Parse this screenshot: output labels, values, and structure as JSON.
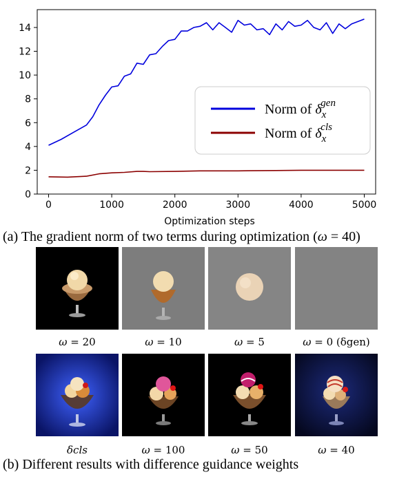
{
  "chart_data": {
    "type": "line",
    "xlabel": "Optimization steps",
    "ylabel": "",
    "xlim": [
      -180,
      5180
    ],
    "ylim": [
      0,
      15.5
    ],
    "xticks": [
      "0",
      "1000",
      "2000",
      "3000",
      "4000",
      "5000"
    ],
    "yticks": [
      "0",
      "2",
      "4",
      "6",
      "8",
      "10",
      "12",
      "14"
    ],
    "grid": false,
    "legend_position": "center-right",
    "series": [
      {
        "name": "Norm of δ_x^gen",
        "color": "#0000dd",
        "x": [
          0,
          200,
          400,
          600,
          700,
          800,
          900,
          1000,
          1100,
          1200,
          1300,
          1400,
          1500,
          1600,
          1700,
          1800,
          1900,
          2000,
          2100,
          2200,
          2300,
          2400,
          2500,
          2600,
          2700,
          2800,
          2900,
          3000,
          3100,
          3200,
          3300,
          3400,
          3500,
          3600,
          3700,
          3800,
          3900,
          4000,
          4100,
          4200,
          4300,
          4400,
          4500,
          4600,
          4700,
          4800,
          4900,
          5000
        ],
        "y": [
          4.1,
          4.6,
          5.2,
          5.8,
          6.5,
          7.5,
          8.3,
          9.0,
          9.1,
          9.9,
          10.1,
          11.0,
          10.9,
          11.7,
          11.8,
          12.4,
          12.9,
          13.0,
          13.7,
          13.7,
          14.0,
          14.1,
          14.4,
          13.8,
          14.4,
          14.0,
          13.6,
          14.6,
          14.2,
          14.3,
          13.8,
          13.9,
          13.4,
          14.3,
          13.8,
          14.5,
          14.1,
          14.2,
          14.6,
          14.0,
          13.8,
          14.4,
          13.5,
          14.3,
          13.9,
          14.3,
          14.5,
          14.7
        ]
      },
      {
        "name": "Norm of δ_x^cls",
        "color": "#8b0000",
        "x": [
          0,
          300,
          600,
          800,
          1000,
          1200,
          1400,
          1500,
          1600,
          2000,
          2400,
          2800,
          3000,
          3200,
          3600,
          4000,
          4400,
          4800,
          5000
        ],
        "y": [
          1.45,
          1.42,
          1.5,
          1.7,
          1.78,
          1.82,
          1.9,
          1.9,
          1.88,
          1.9,
          1.95,
          1.95,
          1.95,
          1.96,
          1.98,
          2.0,
          2.0,
          2.0,
          2.0
        ]
      }
    ]
  },
  "legend": {
    "gen_prefix": "Norm of ",
    "gen_base": "δ",
    "gen_sub": "x",
    "gen_sup": "gen",
    "cls_prefix": "Norm of ",
    "cls_base": "δ",
    "cls_sub": "x",
    "cls_sup": "cls"
  },
  "caption_a": {
    "text": "(a) The gradient norm of two terms during optimization (",
    "omega": "ω",
    "eq": " = 40)"
  },
  "caption_b": "(b) Different results with difference guidance weights",
  "thumbnails": [
    {
      "label_sym": "ω",
      "label_rest": " = 20",
      "background": "#000000"
    },
    {
      "label_sym": "ω",
      "label_rest": " = 10",
      "background": "#7d7d7d"
    },
    {
      "label_sym": "ω",
      "label_rest": " = 5",
      "background": "#858585"
    },
    {
      "label_sym": "ω",
      "label_rest": " = 0 (δgen)",
      "background": "#838383"
    },
    {
      "label_sym": "δcls",
      "label_rest": "",
      "background": "#1b2fb6"
    },
    {
      "label_sym": "ω",
      "label_rest": " = 100",
      "background": "#000000"
    },
    {
      "label_sym": "ω",
      "label_rest": " = 50",
      "background": "#000000"
    },
    {
      "label_sym": "ω",
      "label_rest": " = 40",
      "background": "#0a0f3a"
    }
  ]
}
